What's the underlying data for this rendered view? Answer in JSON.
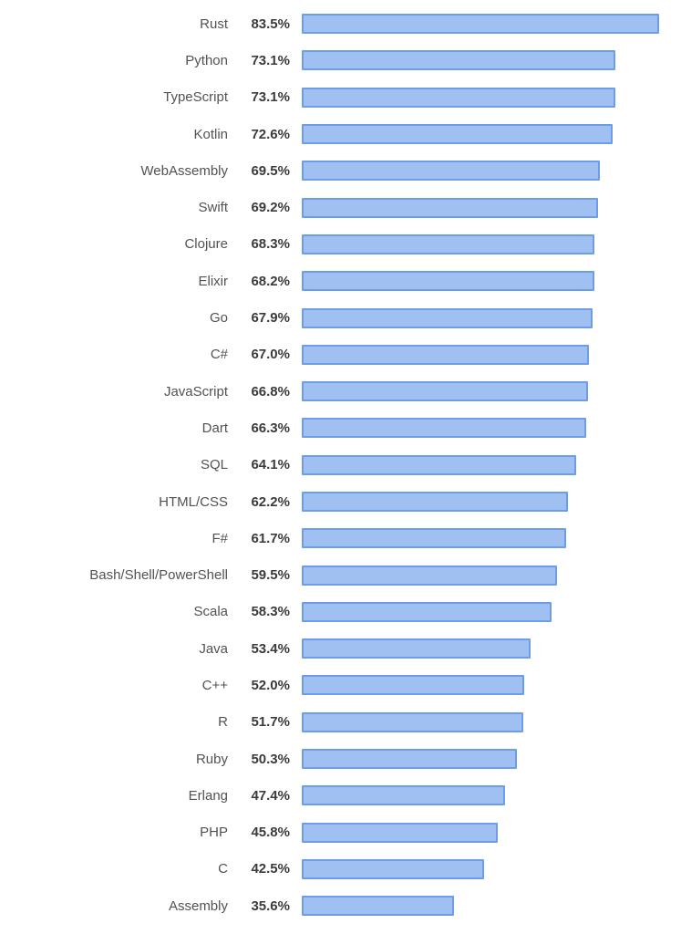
{
  "chart_data": {
    "type": "bar",
    "orientation": "horizontal",
    "title": "",
    "xlabel": "",
    "ylabel": "",
    "xlim": [
      0,
      88.5
    ],
    "grid": false,
    "legend": false,
    "categories": [
      "Rust",
      "Python",
      "TypeScript",
      "Kotlin",
      "WebAssembly",
      "Swift",
      "Clojure",
      "Elixir",
      "Go",
      "C#",
      "JavaScript",
      "Dart",
      "SQL",
      "HTML/CSS",
      "F#",
      "Bash/Shell/PowerShell",
      "Scala",
      "Java",
      "C++",
      "R",
      "Ruby",
      "Erlang",
      "PHP",
      "C",
      "Assembly"
    ],
    "values": [
      83.5,
      73.1,
      73.1,
      72.6,
      69.5,
      69.2,
      68.3,
      68.2,
      67.9,
      67.0,
      66.8,
      66.3,
      64.1,
      62.2,
      61.7,
      59.5,
      58.3,
      53.4,
      52.0,
      51.7,
      50.3,
      47.4,
      45.8,
      42.5,
      35.6
    ],
    "value_labels": [
      "83.5%",
      "73.1%",
      "73.1%",
      "72.6%",
      "69.5%",
      "69.2%",
      "68.3%",
      "68.2%",
      "67.9%",
      "67.0%",
      "66.8%",
      "66.3%",
      "64.1%",
      "62.2%",
      "61.7%",
      "59.5%",
      "58.3%",
      "53.4%",
      "52.0%",
      "51.7%",
      "50.3%",
      "47.4%",
      "45.8%",
      "42.5%",
      "35.6%"
    ],
    "colors": {
      "bar_fill": "#9fc0f1",
      "bar_border": "#6d9ce8",
      "label_color": "#525252",
      "value_color": "#3b3b3b",
      "background": "#ffffff"
    }
  }
}
